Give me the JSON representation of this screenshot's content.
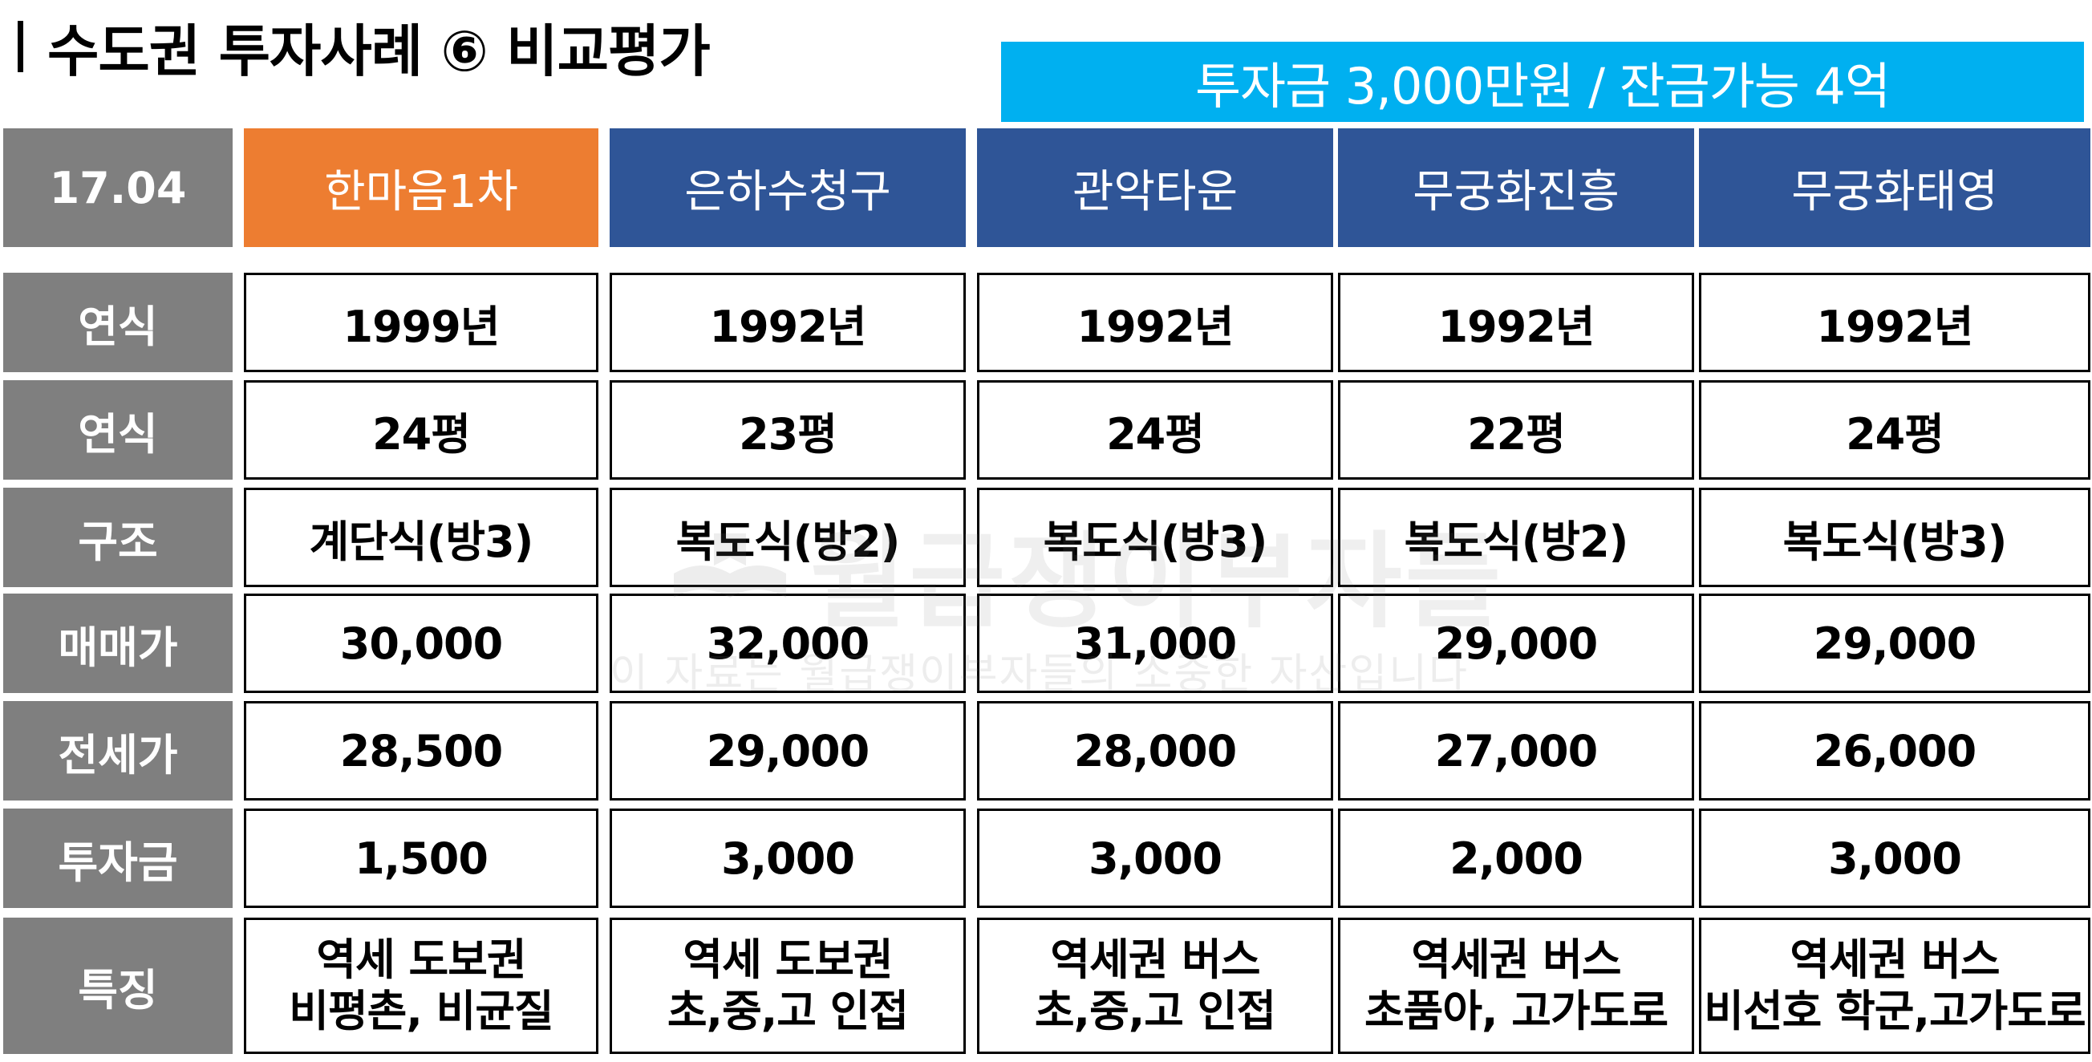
{
  "title": "수도권 투자사례 ⑥ 비교평가",
  "banner": "투자금 3,000만원 / 잔금가능 4억",
  "header": {
    "corner": "17.04",
    "columns": [
      "한마음1차",
      "은하수청구",
      "관악타운",
      "무궁화진흥",
      "무궁화태영"
    ]
  },
  "rows": [
    {
      "label": "연식",
      "values": [
        "1999년",
        "1992년",
        "1992년",
        "1992년",
        "1992년"
      ]
    },
    {
      "label": "연식",
      "values": [
        "24평",
        "23평",
        "24평",
        "22평",
        "24평"
      ]
    },
    {
      "label": "구조",
      "values": [
        "계단식(방3)",
        "복도식(방2)",
        "복도식(방3)",
        "복도식(방2)",
        "복도식(방3)"
      ]
    },
    {
      "label": "매매가",
      "values": [
        "30,000",
        "32,000",
        "31,000",
        "29,000",
        "29,000"
      ]
    },
    {
      "label": "전세가",
      "values": [
        "28,500",
        "29,000",
        "28,000",
        "27,000",
        "26,000"
      ]
    },
    {
      "label": "투자금",
      "values": [
        "1,500",
        "3,000",
        "3,000",
        "2,000",
        "3,000"
      ]
    },
    {
      "label": "특징",
      "values": [
        [
          "역세 도보권",
          "비평촌, 비균질"
        ],
        [
          "역세 도보권",
          "초,중,고 인접"
        ],
        [
          "역세권 버스",
          "초,중,고 인접"
        ],
        [
          "역세권 버스",
          "초품아, 고가도로"
        ],
        [
          "역세권 버스",
          "비선호 학군,고가도로"
        ]
      ]
    }
  ],
  "watermark": {
    "main": "월급쟁이부자들",
    "sub": "이 자료는 월급쟁이부자들의 소중한 자산입니다"
  },
  "colors": {
    "banner": "#00b0f0",
    "header_gray": "#7f7f7f",
    "highlight": "#ed7d31",
    "column_blue": "#2f5597"
  }
}
